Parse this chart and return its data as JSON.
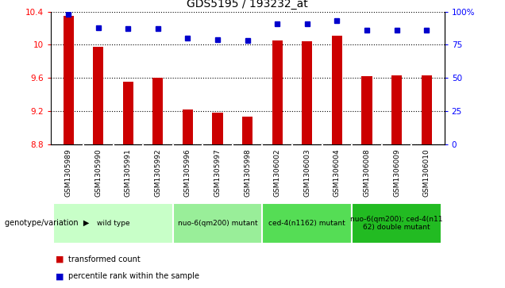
{
  "title": "GDS5195 / 193232_at",
  "samples": [
    "GSM1305989",
    "GSM1305990",
    "GSM1305991",
    "GSM1305992",
    "GSM1305996",
    "GSM1305997",
    "GSM1305998",
    "GSM1306002",
    "GSM1306003",
    "GSM1306004",
    "GSM1306008",
    "GSM1306009",
    "GSM1306010"
  ],
  "bar_values": [
    10.35,
    9.97,
    9.55,
    9.6,
    9.22,
    9.18,
    9.13,
    10.05,
    10.04,
    10.11,
    9.62,
    9.63,
    9.63
  ],
  "dot_values": [
    98,
    88,
    87,
    87,
    80,
    79,
    78,
    91,
    91,
    93,
    86,
    86,
    86
  ],
  "ylim_left": [
    8.8,
    10.4
  ],
  "ylim_right": [
    0,
    100
  ],
  "yticks_left": [
    8.8,
    9.2,
    9.6,
    10.0,
    10.4
  ],
  "yticks_right": [
    0,
    25,
    50,
    75,
    100
  ],
  "ytick_labels_right": [
    "0",
    "25",
    "50",
    "75",
    "100%"
  ],
  "bar_color": "#CC0000",
  "dot_color": "#0000CC",
  "sample_bg_color": "#C8C8C8",
  "groups": [
    {
      "label": "wild type",
      "start": 0,
      "end": 3,
      "color": "#C8FFC8"
    },
    {
      "label": "nuo-6(qm200) mutant",
      "start": 4,
      "end": 6,
      "color": "#99EE99"
    },
    {
      "label": "ced-4(n1162) mutant",
      "start": 7,
      "end": 9,
      "color": "#55DD55"
    },
    {
      "label": "nuo-6(qm200); ced-4(n11\n62) double mutant",
      "start": 10,
      "end": 12,
      "color": "#22BB22"
    }
  ],
  "legend_bar_label": "transformed count",
  "legend_dot_label": "percentile rank within the sample",
  "xlabel_group": "genotype/variation",
  "title_fontsize": 10,
  "tick_fontsize": 7.5,
  "label_fontsize": 7.5
}
